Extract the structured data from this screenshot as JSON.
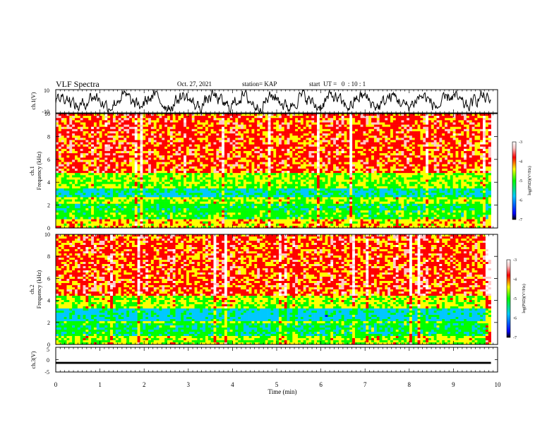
{
  "header": {
    "title": "VLF Spectra",
    "date": "Oct. 27, 2021",
    "station": "station= KAP",
    "start": "start  UT =   0  : 10 : 1"
  },
  "colors": {
    "colormap": [
      "#000000",
      "#0000ff",
      "#00c8ff",
      "#00ff00",
      "#ffff00",
      "#ff0000",
      "#ffc8c8",
      "#ffffff"
    ],
    "waveform": "#000000"
  },
  "chart_data": [
    {
      "type": "line",
      "name": "ch1-waveform",
      "ylabel": "ch.1(V)",
      "ylim": [
        -10,
        10
      ],
      "yticks": [
        "10",
        "-10"
      ],
      "xlim": [
        0,
        10
      ],
      "description_values": "oscillating voltage waveform roughly between -9 and 9 V over the full interval"
    },
    {
      "type": "heatmap",
      "name": "ch1-spectrogram",
      "ylabel_top": "ch.1",
      "ylabel": "Frequency (kHz)",
      "ylim": [
        0,
        10
      ],
      "yticks": [
        "0",
        "2",
        "4",
        "6",
        "8",
        "10"
      ],
      "xlim": [
        0,
        9.85
      ],
      "colorbar": {
        "label": "log(PSD)(V²/Hz)",
        "range": [
          -7,
          -3
        ],
        "ticks": [
          "-3",
          "-4",
          "-5",
          "-6",
          "-7"
        ]
      },
      "bands": [
        {
          "from": 0,
          "to": 0.8,
          "level": -4.3
        },
        {
          "from": 0.8,
          "to": 1.5,
          "level": -5.0
        },
        {
          "from": 1.5,
          "to": 2.1,
          "level": -5.2
        },
        {
          "from": 2.1,
          "to": 2.6,
          "level": -4.6
        },
        {
          "from": 2.6,
          "to": 3.4,
          "level": -5.5
        },
        {
          "from": 3.4,
          "to": 4.9,
          "level": -4.7
        },
        {
          "from": 4.9,
          "to": 10,
          "level": -3.9
        }
      ]
    },
    {
      "type": "heatmap",
      "name": "ch2-spectrogram",
      "ylabel_top": "ch.2",
      "ylabel": "Frequency (kHz)",
      "ylim": [
        0,
        10
      ],
      "yticks": [
        "0",
        "2",
        "4",
        "6",
        "8",
        "10"
      ],
      "xlim": [
        0,
        9.85
      ],
      "colorbar": {
        "label": "log(PSD)(V²/Hz)",
        "range": [
          -7,
          -3
        ],
        "ticks": [
          "-3",
          "-4",
          "-5",
          "-6",
          "-7"
        ]
      },
      "bands": [
        {
          "from": 0,
          "to": 0.7,
          "level": -4.6
        },
        {
          "from": 0.7,
          "to": 1.9,
          "level": -5.2
        },
        {
          "from": 1.9,
          "to": 2.2,
          "level": -4.8
        },
        {
          "from": 2.2,
          "to": 3.2,
          "level": -5.6
        },
        {
          "from": 3.2,
          "to": 4.5,
          "level": -4.6
        },
        {
          "from": 4.5,
          "to": 10,
          "level": -3.9
        }
      ]
    },
    {
      "type": "line",
      "name": "ch3-waveform",
      "ylabel": "ch.3(V)",
      "ylim": [
        -5,
        5
      ],
      "yticks": [
        "5",
        "0",
        "-5"
      ],
      "xlim": [
        0,
        10
      ],
      "level": -1.3,
      "amplitude": 0.4
    }
  ],
  "xaxis": {
    "label": "Time (min)",
    "ticks": [
      "0",
      "1",
      "2",
      "3",
      "4",
      "5",
      "6",
      "7",
      "8",
      "9",
      "10"
    ],
    "range": [
      0,
      10
    ]
  }
}
